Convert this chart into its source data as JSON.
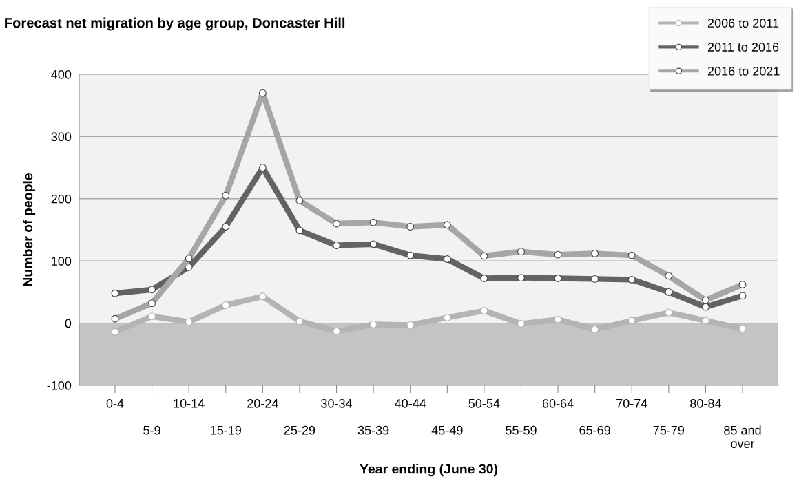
{
  "chart_data": {
    "type": "line",
    "title": "Forecast net migration by age group, Doncaster Hill",
    "xlabel": "Year ending (June 30)",
    "ylabel": "Number of people",
    "categories": [
      "0-4",
      "5-9",
      "10-14",
      "15-19",
      "20-24",
      "25-29",
      "30-34",
      "35-39",
      "40-44",
      "45-49",
      "50-54",
      "55-59",
      "60-64",
      "65-69",
      "70-74",
      "75-79",
      "80-84",
      "85 and\nover"
    ],
    "series": [
      {
        "name": "2006 to 2011",
        "color": "#b4b4b4",
        "values": [
          -14,
          11,
          2,
          29,
          43,
          3,
          -13,
          -2,
          -3,
          9,
          20,
          -1,
          6,
          -10,
          4,
          17,
          4,
          -9
        ]
      },
      {
        "name": "2011 to 2016",
        "color": "#636363",
        "values": [
          48,
          54,
          90,
          155,
          250,
          149,
          125,
          127,
          109,
          103,
          72,
          73,
          72,
          71,
          70,
          50,
          26,
          44
        ]
      },
      {
        "name": "2016 to 2021",
        "color": "#a6a6a6",
        "values": [
          7,
          32,
          104,
          205,
          370,
          197,
          160,
          162,
          155,
          158,
          108,
          115,
          110,
          112,
          109,
          76,
          37,
          62
        ]
      }
    ],
    "ylim": [
      -100,
      400
    ],
    "yticks": [
      -100,
      0,
      100,
      200,
      300,
      400
    ],
    "bands": [
      {
        "axis": "y",
        "from": -100,
        "to": 0,
        "color": "#c4c4c4"
      }
    ],
    "grid": "y",
    "legend": "top right",
    "marker": "circle",
    "line_style": "solid"
  }
}
